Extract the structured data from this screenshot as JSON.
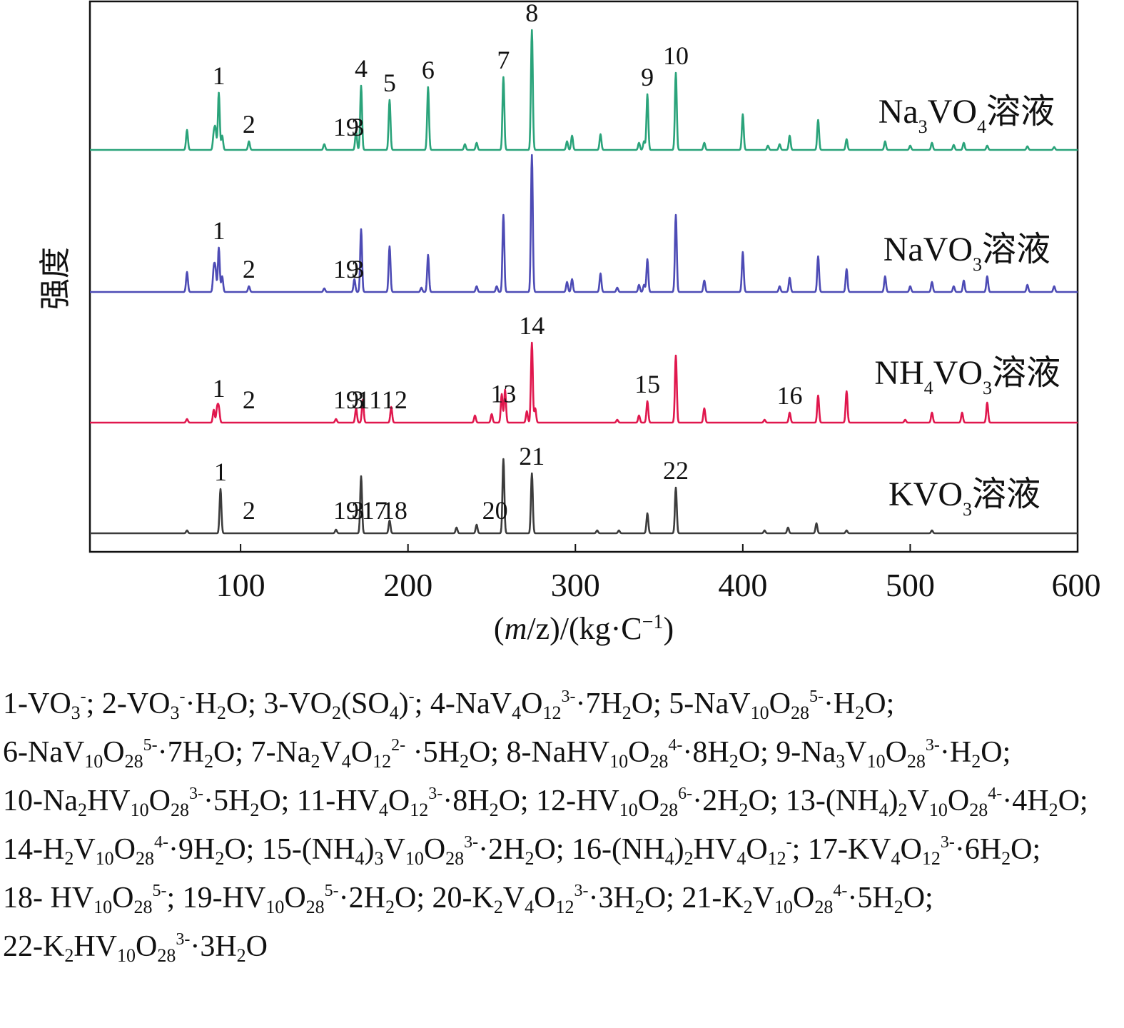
{
  "chart_data": {
    "type": "line",
    "xlabel": "(m/z)/(kg·C⁻¹)",
    "ylabel": "强度",
    "xlim": [
      10,
      600
    ],
    "xticks": [
      100,
      200,
      300,
      400,
      500,
      600
    ],
    "grid": false,
    "series": [
      {
        "name": "Na3VO4溶液",
        "name_html": "Na<tspan baseline-shift='-14' font-size='26'>3</tspan>VO<tspan baseline-shift='-14' font-size='26'>4</tspan>溶液",
        "color": "#2aa37a",
        "peaks": [
          [
            68,
            28
          ],
          [
            84,
            22
          ],
          [
            85,
            28
          ],
          [
            87,
            80
          ],
          [
            89,
            20
          ],
          [
            105,
            12
          ],
          [
            150,
            8
          ],
          [
            169,
            26
          ],
          [
            172,
            90
          ],
          [
            189,
            70
          ],
          [
            212,
            88
          ],
          [
            234,
            8
          ],
          [
            241,
            10
          ],
          [
            257,
            102
          ],
          [
            274,
            168
          ],
          [
            295,
            12
          ],
          [
            298,
            20
          ],
          [
            315,
            22
          ],
          [
            338,
            10
          ],
          [
            341,
            12
          ],
          [
            343,
            78
          ],
          [
            360,
            108
          ],
          [
            377,
            10
          ],
          [
            400,
            50
          ],
          [
            415,
            6
          ],
          [
            422,
            8
          ],
          [
            428,
            20
          ],
          [
            445,
            42
          ],
          [
            462,
            15
          ],
          [
            485,
            12
          ],
          [
            500,
            6
          ],
          [
            513,
            10
          ],
          [
            526,
            7
          ],
          [
            532,
            10
          ],
          [
            546,
            6
          ],
          [
            570,
            5
          ],
          [
            586,
            4
          ]
        ],
        "labels": [
          {
            "x": 87,
            "text": "1"
          },
          {
            "x": 105,
            "text": "2"
          },
          {
            "x": 163,
            "text": "19"
          },
          {
            "x": 170,
            "text": "3"
          },
          {
            "x": 172,
            "text": "4"
          },
          {
            "x": 189,
            "text": "5"
          },
          {
            "x": 212,
            "text": "6"
          },
          {
            "x": 257,
            "text": "7"
          },
          {
            "x": 274,
            "text": "8"
          },
          {
            "x": 343,
            "text": "9"
          },
          {
            "x": 360,
            "text": "10"
          }
        ]
      },
      {
        "name": "NaVO3溶液",
        "name_html": "NaVO<tspan baseline-shift='-14' font-size='26'>3</tspan>溶液",
        "color": "#4d4bb5",
        "peaks": [
          [
            68,
            28
          ],
          [
            84,
            32
          ],
          [
            85,
            30
          ],
          [
            87,
            62
          ],
          [
            89,
            22
          ],
          [
            105,
            8
          ],
          [
            150,
            5
          ],
          [
            168,
            18
          ],
          [
            172,
            88
          ],
          [
            189,
            64
          ],
          [
            208,
            6
          ],
          [
            212,
            52
          ],
          [
            241,
            8
          ],
          [
            253,
            8
          ],
          [
            257,
            108
          ],
          [
            274,
            192
          ],
          [
            295,
            14
          ],
          [
            298,
            18
          ],
          [
            315,
            26
          ],
          [
            325,
            6
          ],
          [
            338,
            10
          ],
          [
            341,
            10
          ],
          [
            343,
            46
          ],
          [
            360,
            108
          ],
          [
            377,
            16
          ],
          [
            400,
            56
          ],
          [
            422,
            8
          ],
          [
            428,
            20
          ],
          [
            445,
            50
          ],
          [
            462,
            32
          ],
          [
            485,
            22
          ],
          [
            500,
            8
          ],
          [
            513,
            14
          ],
          [
            526,
            8
          ],
          [
            532,
            16
          ],
          [
            546,
            22
          ],
          [
            570,
            10
          ],
          [
            586,
            8
          ]
        ],
        "labels": [
          {
            "x": 87,
            "text": "1"
          },
          {
            "x": 105,
            "text": "2"
          },
          {
            "x": 163,
            "text": "19"
          },
          {
            "x": 170,
            "text": "3"
          }
        ]
      },
      {
        "name": "NH4VO3溶液",
        "name_html": "NH<tspan baseline-shift='-14' font-size='26'>4</tspan>VO<tspan baseline-shift='-14' font-size='26'>3</tspan>溶液",
        "color": "#e0174d",
        "peaks": [
          [
            68,
            5
          ],
          [
            84,
            18
          ],
          [
            86,
            20
          ],
          [
            87,
            20
          ],
          [
            157,
            5
          ],
          [
            169,
            20
          ],
          [
            173,
            32
          ],
          [
            190,
            22
          ],
          [
            240,
            10
          ],
          [
            250,
            12
          ],
          [
            256,
            40
          ],
          [
            258,
            46
          ],
          [
            271,
            16
          ],
          [
            274,
            112
          ],
          [
            276,
            20
          ],
          [
            325,
            4
          ],
          [
            338,
            10
          ],
          [
            343,
            30
          ],
          [
            360,
            94
          ],
          [
            377,
            20
          ],
          [
            413,
            4
          ],
          [
            428,
            14
          ],
          [
            445,
            38
          ],
          [
            462,
            44
          ],
          [
            497,
            4
          ],
          [
            513,
            14
          ],
          [
            531,
            14
          ],
          [
            546,
            28
          ]
        ],
        "labels": [
          {
            "x": 87,
            "text": "1"
          },
          {
            "x": 105,
            "text": "2"
          },
          {
            "x": 163,
            "text": "19"
          },
          {
            "x": 170,
            "text": "3"
          },
          {
            "x": 177,
            "text": "11"
          },
          {
            "x": 192,
            "text": "12"
          },
          {
            "x": 257,
            "text": "13"
          },
          {
            "x": 274,
            "text": "14"
          },
          {
            "x": 343,
            "text": "15"
          },
          {
            "x": 428,
            "text": "16"
          }
        ]
      },
      {
        "name": "KVO3溶液",
        "name_html": "KVO<tspan baseline-shift='-14' font-size='26'>3</tspan>溶液",
        "color": "#3c3c3c",
        "peaks": [
          [
            68,
            4
          ],
          [
            88,
            62
          ],
          [
            157,
            5
          ],
          [
            172,
            80
          ],
          [
            189,
            18
          ],
          [
            229,
            8
          ],
          [
            241,
            12
          ],
          [
            257,
            104
          ],
          [
            274,
            84
          ],
          [
            313,
            4
          ],
          [
            326,
            4
          ],
          [
            343,
            28
          ],
          [
            360,
            64
          ],
          [
            413,
            4
          ],
          [
            427,
            8
          ],
          [
            444,
            14
          ],
          [
            462,
            4
          ],
          [
            513,
            4
          ]
        ],
        "labels": [
          {
            "x": 88,
            "text": "1"
          },
          {
            "x": 105,
            "text": "2"
          },
          {
            "x": 163,
            "text": "19"
          },
          {
            "x": 170,
            "text": "3"
          },
          {
            "x": 180,
            "text": "17"
          },
          {
            "x": 192,
            "text": "18"
          },
          {
            "x": 252,
            "text": "20"
          },
          {
            "x": 274,
            "text": "21"
          },
          {
            "x": 360,
            "text": "22"
          }
        ]
      }
    ]
  },
  "legend_entries": [
    {
      "text": "1-VO₃⁻;",
      "html": "1-VO<sub>3</sub><sup>-</sup>;"
    },
    {
      "text": "2-VO₃⁻·H₂O;",
      "html": "2-VO<sub>3</sub><sup>-</sup>·H<sub>2</sub>O;"
    },
    {
      "text": "3-VO₂(SO₄)⁻;",
      "html": "3-VO<sub>2</sub>(SO<sub>4</sub>)<sup>-</sup>;"
    },
    {
      "text": "4-NaV₄O₁₂³⁻·7H₂O;",
      "html": "4-NaV<sub>4</sub>O<sub>12</sub><sup>3-</sup>·7H<sub>2</sub>O;"
    },
    {
      "text": "5-NaV₁₀O₂₈⁵⁻·H₂O;",
      "html": "5-NaV<sub>10</sub>O<sub>28</sub><sup>5-</sup>·H<sub>2</sub>O;"
    },
    {
      "text": "6-NaV₁₀O₂₈⁵⁻·7H₂O;",
      "html": "6-NaV<sub>10</sub>O<sub>28</sub><sup>5-</sup>·7H<sub>2</sub>O;"
    },
    {
      "text": "7-Na₂V₄O₁₂²⁻ ·5H₂O;",
      "html": "7-Na<sub>2</sub>V<sub>4</sub>O<sub>12</sub><sup>2-</sup> ·5H<sub>2</sub>O;"
    },
    {
      "text": "8-NaHV₁₀O₂₈⁴⁻·8H₂O;",
      "html": "8-NaHV<sub>10</sub>O<sub>28</sub><sup>4-</sup>·8H<sub>2</sub>O;"
    },
    {
      "text": "9-Na₃V₁₀O₂₈³⁻·H₂O;",
      "html": "9-Na<sub>3</sub>V<sub>10</sub>O<sub>28</sub><sup>3-</sup>·H<sub>2</sub>O;"
    },
    {
      "text": "10-Na₂HV₁₀O₂₈³⁻·5H₂O;",
      "html": "10-Na<sub>2</sub>HV<sub>10</sub>O<sub>28</sub><sup>3-</sup>·5H<sub>2</sub>O;"
    },
    {
      "text": "11-HV₄O₁₂³⁻·8H₂O;",
      "html": "11-HV<sub>4</sub>O<sub>12</sub><sup>3-</sup>·8H<sub>2</sub>O;"
    },
    {
      "text": "12-HV₁₀O₂₈⁶⁻·2H₂O;",
      "html": "12-HV<sub>10</sub>O<sub>28</sub><sup>6-</sup>·2H<sub>2</sub>O;"
    },
    {
      "text": "13-(NH₄)₂V₁₀O₂₈⁴⁻·4H₂O;",
      "html": "13-(NH<sub>4</sub>)<sub>2</sub>V<sub>10</sub>O<sub>28</sub><sup>4-</sup>·4H<sub>2</sub>O;"
    },
    {
      "text": "14-H₂V₁₀O₂₈⁴⁻·9H₂O;",
      "html": "14-H<sub>2</sub>V<sub>10</sub>O<sub>28</sub><sup>4-</sup>·9H<sub>2</sub>O;"
    },
    {
      "text": "15-(NH₄)₃V₁₀O₂₈³⁻·2H₂O;",
      "html": "15-(NH<sub>4</sub>)<sub>3</sub>V<sub>10</sub>O<sub>28</sub><sup>3-</sup>·2H<sub>2</sub>O;"
    },
    {
      "text": "16-(NH₄)₂HV₄O₁₂⁻;",
      "html": "16-(NH<sub>4</sub>)<sub>2</sub>HV<sub>4</sub>O<sub>12</sub><sup>-</sup>;"
    },
    {
      "text": "17-KV₄O₁₂³⁻·6H₂O;",
      "html": "17-KV<sub>4</sub>O<sub>12</sub><sup>3-</sup>·6H<sub>2</sub>O;"
    },
    {
      "text": "18- HV₁₀O₂₈⁵⁻;",
      "html": "18- HV<sub>10</sub>O<sub>28</sub><sup>5-</sup>;"
    },
    {
      "text": "19-HV₁₀O₂₈⁵⁻·2H₂O;",
      "html": "19-HV<sub>10</sub>O<sub>28</sub><sup>5-</sup>·2H<sub>2</sub>O;"
    },
    {
      "text": "20-K₂V₄O₁₂³⁻·3H₂O;",
      "html": "20-K<sub>2</sub>V<sub>4</sub>O<sub>12</sub><sup>3-</sup>·3H<sub>2</sub>O;"
    },
    {
      "text": "21-K₂V₁₀O₂₈⁴⁻·5H₂O;",
      "html": "21-K<sub>2</sub>V<sub>10</sub>O<sub>28</sub><sup>4-</sup>·5H<sub>2</sub>O;"
    },
    {
      "text": "22-K₂HV₁₀O₂₈³⁻·3H₂O",
      "html": "22-K<sub>2</sub>HV<sub>10</sub>O<sub>28</sub><sup>3-</sup>·3H<sub>2</sub>O"
    }
  ]
}
